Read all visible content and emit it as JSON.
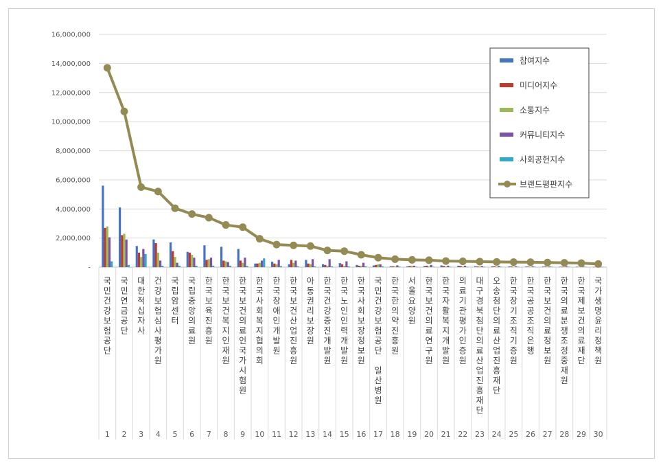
{
  "chart_data": {
    "type": "bar",
    "title": "",
    "xlabel": "",
    "ylabel": "",
    "ylim": [
      0,
      16000000
    ],
    "yticks": [
      0,
      2000000,
      4000000,
      6000000,
      8000000,
      10000000,
      12000000,
      14000000,
      16000000
    ],
    "ytick_labels": [
      "-",
      "2,000,000",
      "4,000,000",
      "6,000,000",
      "8,000,000",
      "10,000,000",
      "12,000,000",
      "14,000,000",
      "16,000,000"
    ],
    "grid": true,
    "legend_position": "top-right",
    "ranks": [
      "1",
      "2",
      "3",
      "4",
      "5",
      "6",
      "7",
      "8",
      "9",
      "10",
      "11",
      "12",
      "13",
      "14",
      "15",
      "16",
      "17",
      "18",
      "19",
      "20",
      "21",
      "22",
      "23",
      "24",
      "25",
      "26",
      "27",
      "28",
      "29",
      "30"
    ],
    "categories": [
      "국민건강보험공단",
      "국민연금공단",
      "대한적십자사",
      "건강보험심사평가원",
      "국립암센터",
      "국립중앙의료원",
      "한국보육진흥원",
      "한국보건복지인재원",
      "한국보건의료인국가시험원",
      "한국사회복지협의회",
      "한국장애인개발원",
      "한국보건산업진흥원",
      "아동권리보장원",
      "한국건강증진개발원",
      "한국노인인력개발원",
      "한국사회보장정보원",
      "국민건강보험공단 일산병원",
      "한국한의약진흥원",
      "서울요양원",
      "한국보건의료연구원",
      "한국자활복지개발원",
      "의료기관평가인증원",
      "대구경북첨단의료산업진흥재단",
      "오송첨단의료산업진흥재단",
      "한국장기조직기증원",
      "한국공공조직은행",
      "한국보건의료정보원",
      "한국의료분쟁조정중재원",
      "한국제보건의료재단",
      "국가생명윤리정책원"
    ],
    "series": [
      {
        "name": "참여지수",
        "type": "bar",
        "color": "#4472c4",
        "values": [
          5600000,
          4100000,
          1450000,
          1900000,
          1700000,
          1050000,
          1500000,
          1400000,
          1250000,
          250000,
          380000,
          200000,
          500000,
          200000,
          280000,
          150000,
          120000,
          60000,
          60000,
          80000,
          120000,
          100000,
          60000,
          60000,
          50000,
          40000,
          40000,
          30000,
          30000,
          20000
        ]
      },
      {
        "name": "미디어지수",
        "type": "bar",
        "color": "#c0392b",
        "values": [
          2700000,
          2200000,
          1000000,
          1650000,
          1100000,
          1000000,
          500000,
          450000,
          450000,
          250000,
          250000,
          500000,
          250000,
          150000,
          200000,
          100000,
          150000,
          60000,
          80000,
          100000,
          80000,
          80000,
          50000,
          60000,
          50000,
          40000,
          40000,
          30000,
          20000,
          20000
        ]
      },
      {
        "name": "소통지수",
        "type": "bar",
        "color": "#9bbb59",
        "values": [
          2800000,
          2300000,
          700000,
          1000000,
          700000,
          850000,
          550000,
          400000,
          300000,
          300000,
          200000,
          300000,
          200000,
          100000,
          100000,
          100000,
          200000,
          50000,
          100000,
          50000,
          50000,
          50000,
          40000,
          40000,
          30000,
          30000,
          30000,
          20000,
          20000,
          20000
        ]
      },
      {
        "name": "커뮤니티지수",
        "type": "bar",
        "color": "#7b52a8",
        "values": [
          2050000,
          1900000,
          1250000,
          450000,
          300000,
          650000,
          650000,
          350000,
          650000,
          450000,
          500000,
          450000,
          550000,
          550000,
          400000,
          300000,
          200000,
          120000,
          100000,
          150000,
          100000,
          100000,
          80000,
          80000,
          60000,
          60000,
          50000,
          50000,
          40000,
          30000
        ]
      },
      {
        "name": "사회공헌지수",
        "type": "bar",
        "color": "#31a9c9",
        "values": [
          400000,
          150000,
          900000,
          100000,
          100000,
          100000,
          100000,
          100000,
          80000,
          600000,
          80000,
          60000,
          60000,
          60000,
          60000,
          60000,
          60000,
          40000,
          30000,
          30000,
          30000,
          30000,
          30000,
          30000,
          30000,
          30000,
          30000,
          30000,
          20000,
          20000
        ]
      },
      {
        "name": "브랜드평판지수",
        "type": "line",
        "color": "#948a54",
        "values": [
          13700000,
          10700000,
          5500000,
          5200000,
          4050000,
          3650000,
          3400000,
          2900000,
          2750000,
          1950000,
          1550000,
          1500000,
          1450000,
          1150000,
          1100000,
          850000,
          650000,
          550000,
          500000,
          480000,
          420000,
          400000,
          380000,
          360000,
          350000,
          340000,
          320000,
          300000,
          280000,
          220000
        ]
      }
    ]
  }
}
